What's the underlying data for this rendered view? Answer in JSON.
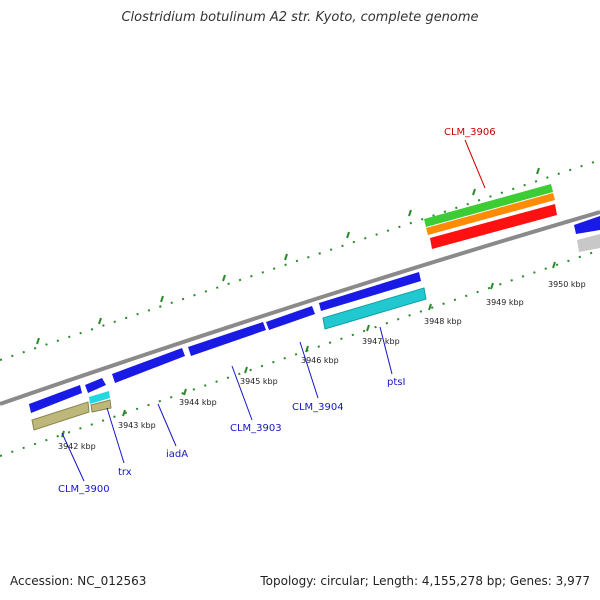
{
  "title": "Clostridium botulinum A2 str. Kyoto, complete genome",
  "footer": {
    "accession": "Accession: NC_012563",
    "topology": "Topology: circular; Length: 4,155,278 bp; Genes: 3,977"
  },
  "colors": {
    "backbone": "#7f7f7f",
    "gene_blue": "#1a1ae6",
    "cyan": "#22c8d0",
    "olive": "#bdb77a",
    "red": "#ff1111",
    "orange": "#ff8c00",
    "green": "#3ccc33",
    "gray": "#c8c8c8",
    "label_blue": "#1616c8",
    "label_red": "#cc0000",
    "ticks": "#2a8a2a"
  },
  "kbp_labels": [
    "3942 kbp",
    "3943 kbp",
    "3944 kbp",
    "3945 kbp",
    "3946 kbp",
    "3947 kbp",
    "3948 kbp",
    "3949 kbp",
    "3950 kbp"
  ],
  "gene_labels": [
    "CLM_3900",
    "trx",
    "iadA",
    "CLM_3903",
    "CLM_3904",
    "ptsI",
    "CLM_3906"
  ]
}
